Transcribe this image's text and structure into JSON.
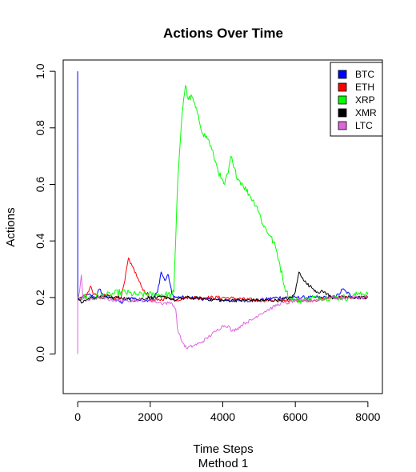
{
  "chart_data": {
    "type": "line",
    "title": "Actions Over Time",
    "xlabel": "Time Steps",
    "xlabel_sub": "Method 1",
    "ylabel": "Actions",
    "xlim": [
      -400,
      8400
    ],
    "ylim": [
      -0.14,
      1.04
    ],
    "x_ticks": [
      0,
      2000,
      4000,
      6000,
      8000
    ],
    "y_ticks": [
      0.0,
      0.2,
      0.4,
      0.6,
      0.8,
      1.0
    ],
    "legend_position": "top-right",
    "grid": false,
    "series": [
      {
        "name": "BTC",
        "color": "#0000ff",
        "points": [
          [
            0,
            1.0
          ],
          [
            1,
            0.2
          ],
          [
            50,
            0.19
          ],
          [
            150,
            0.2
          ],
          [
            300,
            0.21
          ],
          [
            500,
            0.2
          ],
          [
            600,
            0.23
          ],
          [
            700,
            0.21
          ],
          [
            900,
            0.2
          ],
          [
            1100,
            0.19
          ],
          [
            1200,
            0.18
          ],
          [
            1300,
            0.19
          ],
          [
            1500,
            0.2
          ],
          [
            1700,
            0.19
          ],
          [
            1900,
            0.19
          ],
          [
            2100,
            0.2
          ],
          [
            2200,
            0.22
          ],
          [
            2300,
            0.29
          ],
          [
            2400,
            0.26
          ],
          [
            2500,
            0.28
          ],
          [
            2600,
            0.21
          ],
          [
            2700,
            0.2
          ],
          [
            2800,
            0.2
          ],
          [
            3000,
            0.2
          ],
          [
            4000,
            0.19
          ],
          [
            5000,
            0.19
          ],
          [
            5500,
            0.2
          ],
          [
            6000,
            0.2
          ],
          [
            6500,
            0.2
          ],
          [
            7000,
            0.2
          ],
          [
            7200,
            0.21
          ],
          [
            7300,
            0.23
          ],
          [
            7400,
            0.22
          ],
          [
            7600,
            0.2
          ],
          [
            7800,
            0.2
          ],
          [
            8000,
            0.2
          ]
        ]
      },
      {
        "name": "ETH",
        "color": "#ff0000",
        "points": [
          [
            0,
            0.19
          ],
          [
            100,
            0.2
          ],
          [
            200,
            0.21
          ],
          [
            300,
            0.22
          ],
          [
            350,
            0.24
          ],
          [
            450,
            0.21
          ],
          [
            600,
            0.2
          ],
          [
            800,
            0.21
          ],
          [
            1000,
            0.2
          ],
          [
            1200,
            0.2
          ],
          [
            1300,
            0.26
          ],
          [
            1400,
            0.34
          ],
          [
            1450,
            0.32
          ],
          [
            1550,
            0.3
          ],
          [
            1650,
            0.27
          ],
          [
            1750,
            0.24
          ],
          [
            1850,
            0.22
          ],
          [
            1950,
            0.21
          ],
          [
            2000,
            0.19
          ],
          [
            2200,
            0.19
          ],
          [
            2500,
            0.2
          ],
          [
            2700,
            0.19
          ],
          [
            3000,
            0.2
          ],
          [
            4000,
            0.2
          ],
          [
            5000,
            0.19
          ],
          [
            5500,
            0.19
          ],
          [
            6000,
            0.19
          ],
          [
            6500,
            0.19
          ],
          [
            7000,
            0.2
          ],
          [
            7500,
            0.2
          ],
          [
            8000,
            0.2
          ]
        ]
      },
      {
        "name": "XRP",
        "color": "#00ff00",
        "points": [
          [
            0,
            0.2
          ],
          [
            400,
            0.2
          ],
          [
            900,
            0.21
          ],
          [
            1200,
            0.22
          ],
          [
            1600,
            0.21
          ],
          [
            2200,
            0.21
          ],
          [
            2600,
            0.21
          ],
          [
            2650,
            0.22
          ],
          [
            2700,
            0.4
          ],
          [
            2760,
            0.62
          ],
          [
            2800,
            0.7
          ],
          [
            2870,
            0.84
          ],
          [
            2920,
            0.9
          ],
          [
            2970,
            0.95
          ],
          [
            3050,
            0.9
          ],
          [
            3150,
            0.91
          ],
          [
            3300,
            0.85
          ],
          [
            3450,
            0.78
          ],
          [
            3600,
            0.76
          ],
          [
            3750,
            0.7
          ],
          [
            3850,
            0.66
          ],
          [
            3950,
            0.62
          ],
          [
            4050,
            0.6
          ],
          [
            4150,
            0.64
          ],
          [
            4220,
            0.7
          ],
          [
            4300,
            0.66
          ],
          [
            4420,
            0.62
          ],
          [
            4550,
            0.6
          ],
          [
            4750,
            0.56
          ],
          [
            4950,
            0.52
          ],
          [
            5100,
            0.46
          ],
          [
            5300,
            0.42
          ],
          [
            5450,
            0.38
          ],
          [
            5550,
            0.33
          ],
          [
            5650,
            0.27
          ],
          [
            5750,
            0.22
          ],
          [
            5850,
            0.2
          ],
          [
            6000,
            0.19
          ],
          [
            6200,
            0.19
          ],
          [
            6500,
            0.2
          ],
          [
            7000,
            0.2
          ],
          [
            7500,
            0.2
          ],
          [
            7700,
            0.21
          ],
          [
            7800,
            0.22
          ],
          [
            7900,
            0.21
          ],
          [
            8000,
            0.21
          ]
        ]
      },
      {
        "name": "XMR",
        "color": "#000000",
        "points": [
          [
            0,
            0.2
          ],
          [
            100,
            0.18
          ],
          [
            200,
            0.19
          ],
          [
            400,
            0.2
          ],
          [
            600,
            0.2
          ],
          [
            800,
            0.2
          ],
          [
            1000,
            0.2
          ],
          [
            1200,
            0.2
          ],
          [
            1500,
            0.19
          ],
          [
            2000,
            0.2
          ],
          [
            2500,
            0.2
          ],
          [
            2700,
            0.19
          ],
          [
            3000,
            0.2
          ],
          [
            4000,
            0.19
          ],
          [
            5000,
            0.19
          ],
          [
            5600,
            0.19
          ],
          [
            5900,
            0.2
          ],
          [
            6000,
            0.22
          ],
          [
            6100,
            0.29
          ],
          [
            6200,
            0.27
          ],
          [
            6300,
            0.25
          ],
          [
            6400,
            0.24
          ],
          [
            6500,
            0.23
          ],
          [
            6600,
            0.22
          ],
          [
            6800,
            0.22
          ],
          [
            7000,
            0.2
          ],
          [
            7500,
            0.2
          ],
          [
            8000,
            0.2
          ]
        ]
      },
      {
        "name": "LTC",
        "color": "#dd66dd",
        "points": [
          [
            0,
            0.0
          ],
          [
            2,
            0.2
          ],
          [
            50,
            0.22
          ],
          [
            100,
            0.28
          ],
          [
            140,
            0.2
          ],
          [
            300,
            0.19
          ],
          [
            600,
            0.2
          ],
          [
            1000,
            0.19
          ],
          [
            1500,
            0.19
          ],
          [
            2000,
            0.19
          ],
          [
            2300,
            0.18
          ],
          [
            2500,
            0.18
          ],
          [
            2600,
            0.18
          ],
          [
            2700,
            0.16
          ],
          [
            2750,
            0.09
          ],
          [
            2850,
            0.05
          ],
          [
            3000,
            0.02
          ],
          [
            3200,
            0.03
          ],
          [
            3400,
            0.04
          ],
          [
            3600,
            0.06
          ],
          [
            3800,
            0.08
          ],
          [
            4000,
            0.1
          ],
          [
            4150,
            0.1
          ],
          [
            4250,
            0.08
          ],
          [
            4400,
            0.09
          ],
          [
            4600,
            0.11
          ],
          [
            4800,
            0.12
          ],
          [
            5000,
            0.14
          ],
          [
            5300,
            0.16
          ],
          [
            5600,
            0.18
          ],
          [
            5800,
            0.18
          ],
          [
            6000,
            0.19
          ],
          [
            6500,
            0.19
          ],
          [
            7000,
            0.2
          ],
          [
            7500,
            0.2
          ],
          [
            8000,
            0.2
          ]
        ]
      }
    ]
  }
}
